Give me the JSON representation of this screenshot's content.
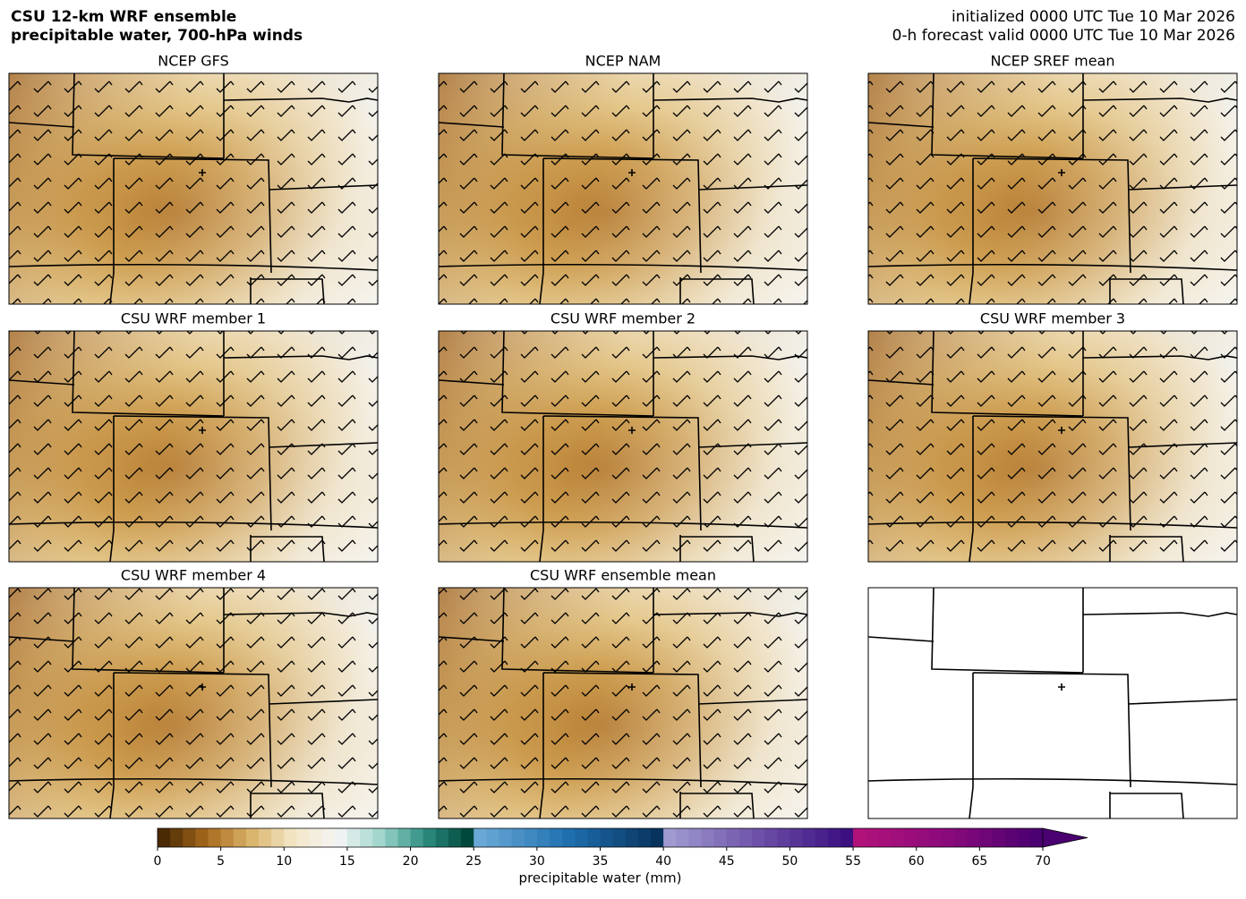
{
  "header": {
    "title_lines": [
      "CSU 12-km WRF ensemble",
      "precipitable water, 700-hPa winds"
    ],
    "init_lines": [
      "initialized 0000 UTC Tue 10 Mar 2026",
      "0-h forecast valid 0000 UTC Tue 10 Mar 2026"
    ]
  },
  "panels": [
    {
      "title": "NCEP GFS",
      "filled": true
    },
    {
      "title": "NCEP NAM",
      "filled": true
    },
    {
      "title": "NCEP SREF mean",
      "filled": true
    },
    {
      "title": "CSU WRF member 1",
      "filled": true
    },
    {
      "title": "CSU WRF member 2",
      "filled": true
    },
    {
      "title": "CSU WRF member 3",
      "filled": true
    },
    {
      "title": "CSU WRF member 4",
      "filled": true
    },
    {
      "title": "CSU WRF ensemble mean",
      "filled": true
    },
    {
      "title": null,
      "filled": false
    }
  ],
  "colorbar": {
    "label": "precipitable water (mm)",
    "lim": [
      0,
      70
    ],
    "ticks": [
      0,
      5,
      10,
      15,
      20,
      25,
      30,
      35,
      40,
      45,
      50,
      55,
      60,
      65,
      70
    ],
    "ranges": [
      {
        "start": 0,
        "end": 25,
        "step": 1,
        "colors": [
          "#4a2a04",
          "#a86a1c",
          "#d9b36a",
          "#f3e7c8",
          "#f5f5f5",
          "#9fd6cc",
          "#2f8f82",
          "#00483c"
        ]
      },
      {
        "start": 25,
        "end": 40,
        "step": 1,
        "colors": [
          "#6aa9d6",
          "#1f6faf",
          "#08335e"
        ]
      },
      {
        "start": 40,
        "end": 55,
        "step": 1,
        "colors": [
          "#9f9bd0",
          "#6d50a8",
          "#3b0f80"
        ]
      },
      {
        "start": 55,
        "end": 70,
        "step": 1,
        "colors": [
          "#b0127a",
          "#8a0a7c",
          "#4a0070"
        ]
      }
    ]
  }
}
